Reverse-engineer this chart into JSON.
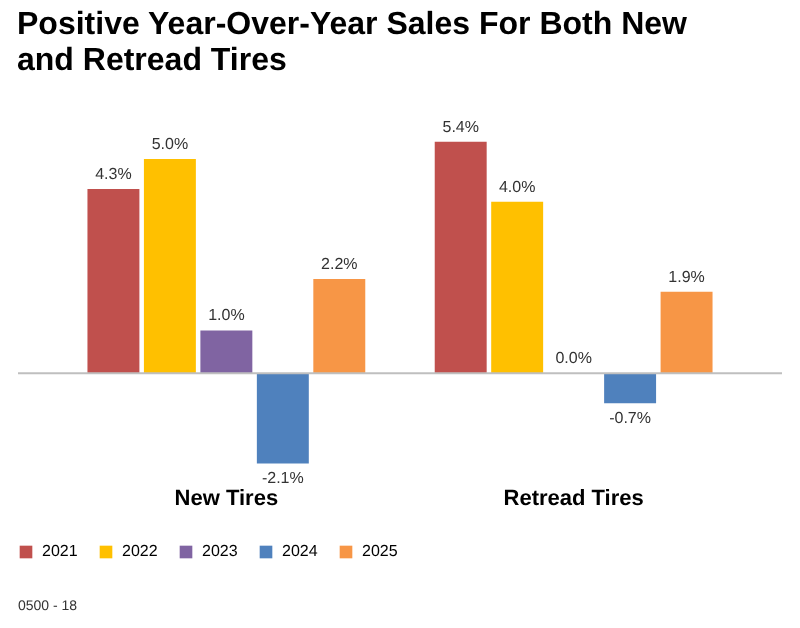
{
  "chart_data": {
    "type": "bar",
    "title": [
      "Positive Year-Over-Year Sales For Both New",
      "and Retread Tires"
    ],
    "categories": [
      "New Tires",
      "Retread Tires"
    ],
    "series": [
      {
        "name": "2021",
        "color": "#c0504d",
        "values": [
          4.3,
          5.4
        ],
        "value_labels": [
          "4.3%",
          "5.4%"
        ]
      },
      {
        "name": "2022",
        "color": "#ffc000",
        "values": [
          5.0,
          4.0
        ],
        "value_labels": [
          "5.0%",
          "4.0%"
        ]
      },
      {
        "name": "2023",
        "color": "#8064a2",
        "values": [
          1.0,
          0.0
        ],
        "value_labels": [
          "1.0%",
          "0.0%"
        ]
      },
      {
        "name": "2024",
        "color": "#4f81bd",
        "values": [
          -2.1,
          -0.7
        ],
        "value_labels": [
          "-2.1%",
          "-0.7%"
        ]
      },
      {
        "name": "2025",
        "color": "#f79646",
        "values": [
          2.2,
          1.9
        ],
        "value_labels": [
          "2.2%",
          "1.9%"
        ]
      }
    ],
    "legend": "bottom",
    "annotations": [
      "0500 - 18"
    ]
  }
}
